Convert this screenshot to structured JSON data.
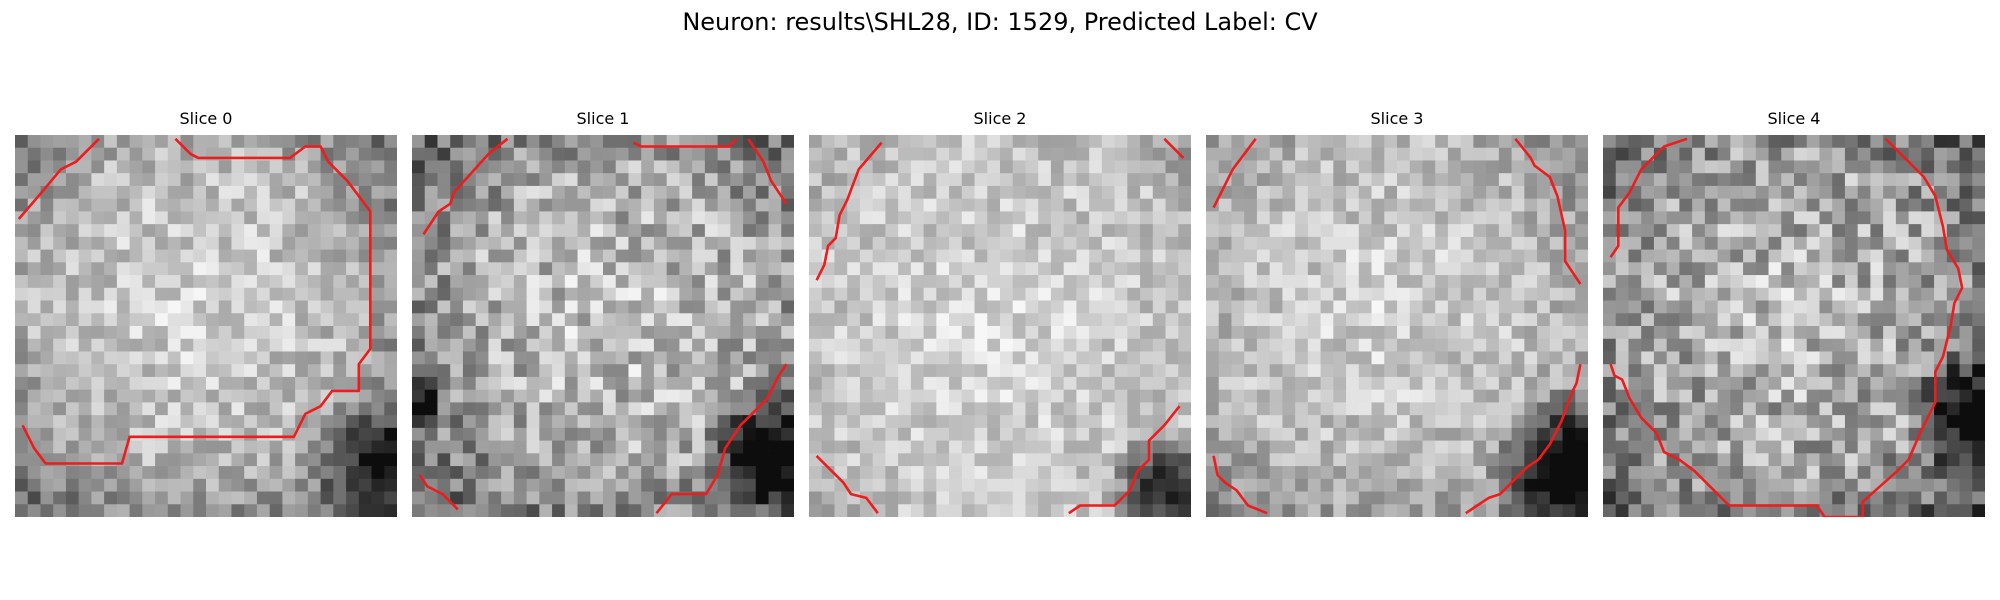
{
  "figure": {
    "title": "Neuron: results\\SHL28, ID: 1529, Predicted Label: CV",
    "contour_color": "#ee1c1c"
  },
  "panels": [
    {
      "label": "Slice 0",
      "brightness": "bright center with slightly darker lower-right corner",
      "contour": [
        [
          [
            0.01,
            0.22
          ],
          [
            0.07,
            0.15
          ],
          [
            0.12,
            0.09
          ],
          [
            0.16,
            0.07
          ],
          [
            0.22,
            0.01
          ]
        ],
        [
          [
            0.42,
            0.01
          ],
          [
            0.46,
            0.05
          ],
          [
            0.48,
            0.06
          ],
          [
            0.72,
            0.06
          ],
          [
            0.76,
            0.03
          ],
          [
            0.8,
            0.03
          ],
          [
            0.82,
            0.07
          ],
          [
            0.87,
            0.12
          ],
          [
            0.93,
            0.2
          ],
          [
            0.93,
            0.56
          ],
          [
            0.9,
            0.6
          ],
          [
            0.9,
            0.67
          ],
          [
            0.83,
            0.67
          ],
          [
            0.8,
            0.71
          ],
          [
            0.76,
            0.73
          ],
          [
            0.73,
            0.79
          ],
          [
            0.3,
            0.79
          ],
          [
            0.28,
            0.86
          ],
          [
            0.08,
            0.86
          ],
          [
            0.05,
            0.82
          ],
          [
            0.02,
            0.76
          ]
        ]
      ]
    },
    {
      "label": "Slice 1",
      "brightness": "textured; darker left edge and dark lower-right corner",
      "contour": [
        [
          [
            0.03,
            0.26
          ],
          [
            0.07,
            0.2
          ],
          [
            0.1,
            0.18
          ],
          [
            0.11,
            0.15
          ],
          [
            0.2,
            0.05
          ],
          [
            0.25,
            0.01
          ]
        ],
        [
          [
            0.58,
            0.02
          ],
          [
            0.6,
            0.03
          ],
          [
            0.83,
            0.03
          ],
          [
            0.85,
            0.01
          ]
        ],
        [
          [
            0.88,
            0.01
          ],
          [
            0.92,
            0.07
          ],
          [
            0.94,
            0.12
          ],
          [
            0.98,
            0.18
          ]
        ],
        [
          [
            0.02,
            0.89
          ],
          [
            0.04,
            0.92
          ],
          [
            0.08,
            0.94
          ],
          [
            0.12,
            0.98
          ]
        ],
        [
          [
            0.64,
            0.99
          ],
          [
            0.68,
            0.94
          ],
          [
            0.77,
            0.94
          ],
          [
            0.8,
            0.89
          ],
          [
            0.82,
            0.82
          ],
          [
            0.86,
            0.76
          ],
          [
            0.93,
            0.69
          ],
          [
            0.96,
            0.63
          ],
          [
            0.98,
            0.6
          ]
        ]
      ]
    },
    {
      "label": "Slice 2",
      "brightness": "mostly bright with darker lower-right corner",
      "contour": [
        [
          [
            0.02,
            0.38
          ],
          [
            0.04,
            0.34
          ],
          [
            0.05,
            0.29
          ],
          [
            0.07,
            0.27
          ],
          [
            0.08,
            0.21
          ],
          [
            0.1,
            0.17
          ],
          [
            0.13,
            0.09
          ],
          [
            0.19,
            0.02
          ]
        ],
        [
          [
            0.93,
            0.01
          ],
          [
            0.98,
            0.06
          ]
        ],
        [
          [
            0.02,
            0.84
          ],
          [
            0.06,
            0.88
          ],
          [
            0.09,
            0.91
          ],
          [
            0.11,
            0.94
          ],
          [
            0.15,
            0.95
          ],
          [
            0.18,
            0.99
          ]
        ],
        [
          [
            0.68,
            0.99
          ],
          [
            0.71,
            0.97
          ],
          [
            0.8,
            0.97
          ],
          [
            0.84,
            0.93
          ],
          [
            0.86,
            0.88
          ],
          [
            0.89,
            0.85
          ],
          [
            0.89,
            0.8
          ],
          [
            0.93,
            0.76
          ],
          [
            0.97,
            0.71
          ]
        ]
      ]
    },
    {
      "label": "Slice 3",
      "brightness": "bright disk with dark lower-right region",
      "contour": [
        [
          [
            0.02,
            0.19
          ],
          [
            0.04,
            0.15
          ],
          [
            0.05,
            0.13
          ],
          [
            0.07,
            0.09
          ],
          [
            0.13,
            0.01
          ]
        ],
        [
          [
            0.81,
            0.01
          ],
          [
            0.85,
            0.06
          ],
          [
            0.86,
            0.08
          ],
          [
            0.9,
            0.11
          ],
          [
            0.92,
            0.16
          ],
          [
            0.94,
            0.25
          ],
          [
            0.94,
            0.33
          ],
          [
            0.98,
            0.39
          ]
        ],
        [
          [
            0.02,
            0.84
          ],
          [
            0.03,
            0.89
          ],
          [
            0.05,
            0.91
          ],
          [
            0.08,
            0.93
          ],
          [
            0.11,
            0.97
          ],
          [
            0.16,
            0.99
          ]
        ],
        [
          [
            0.68,
            0.99
          ],
          [
            0.71,
            0.97
          ],
          [
            0.74,
            0.95
          ],
          [
            0.77,
            0.94
          ],
          [
            0.8,
            0.91
          ],
          [
            0.84,
            0.87
          ],
          [
            0.87,
            0.85
          ],
          [
            0.9,
            0.81
          ],
          [
            0.93,
            0.75
          ],
          [
            0.96,
            0.67
          ],
          [
            0.97,
            0.65
          ],
          [
            0.98,
            0.6
          ]
        ]
      ]
    },
    {
      "label": "Slice 4",
      "brightness": "textured gray with darker lower-right corner",
      "contour": [
        [
          [
            0.02,
            0.32
          ],
          [
            0.04,
            0.29
          ],
          [
            0.04,
            0.19
          ],
          [
            0.07,
            0.15
          ],
          [
            0.1,
            0.09
          ],
          [
            0.14,
            0.05
          ],
          [
            0.16,
            0.03
          ],
          [
            0.22,
            0.01
          ]
        ],
        [
          [
            0.74,
            0.01
          ],
          [
            0.79,
            0.06
          ],
          [
            0.84,
            0.11
          ],
          [
            0.87,
            0.16
          ],
          [
            0.89,
            0.24
          ],
          [
            0.9,
            0.3
          ],
          [
            0.93,
            0.35
          ],
          [
            0.94,
            0.4
          ],
          [
            0.92,
            0.44
          ],
          [
            0.91,
            0.5
          ],
          [
            0.89,
            0.58
          ],
          [
            0.87,
            0.62
          ],
          [
            0.87,
            0.7
          ],
          [
            0.83,
            0.78
          ],
          [
            0.8,
            0.85
          ],
          [
            0.77,
            0.88
          ],
          [
            0.68,
            0.96
          ],
          [
            0.68,
            1.0
          ],
          [
            0.58,
            1.0
          ],
          [
            0.56,
            0.97
          ],
          [
            0.33,
            0.97
          ],
          [
            0.28,
            0.92
          ],
          [
            0.24,
            0.88
          ],
          [
            0.2,
            0.85
          ],
          [
            0.16,
            0.83
          ],
          [
            0.14,
            0.78
          ],
          [
            0.1,
            0.74
          ],
          [
            0.07,
            0.69
          ],
          [
            0.05,
            0.64
          ],
          [
            0.03,
            0.63
          ],
          [
            0.02,
            0.6
          ]
        ]
      ]
    }
  ]
}
